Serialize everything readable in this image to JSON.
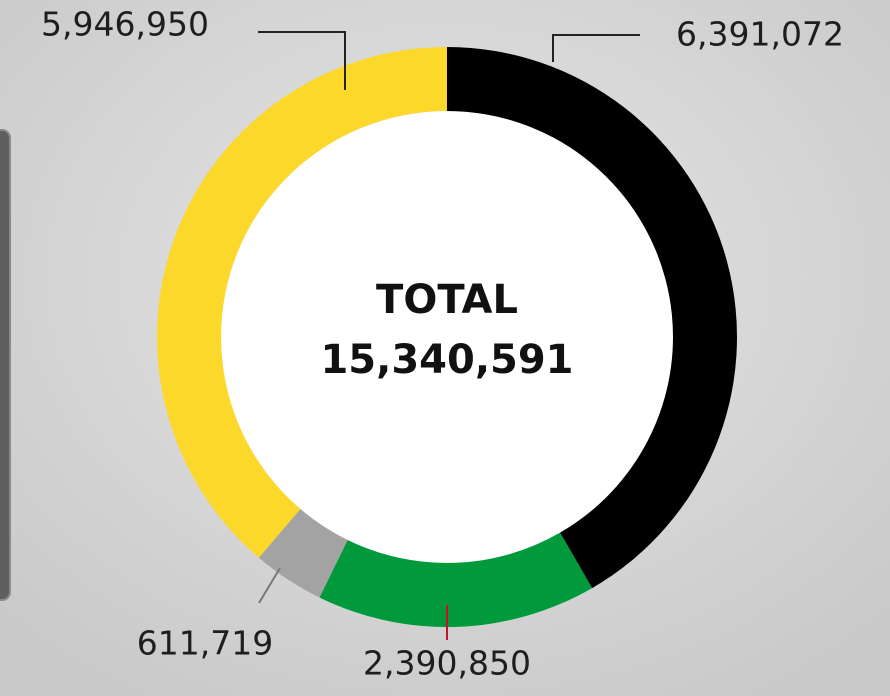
{
  "chart_data": {
    "type": "donut",
    "values": [
      6391072,
      2390850,
      611719,
      5946950
    ],
    "value_labels": [
      "6,391,072",
      "2,390,850",
      "611,719",
      "5,946,950"
    ],
    "colors": [
      "#000000",
      "#009a3d",
      "#a3a3a3",
      "#fcd82a"
    ],
    "center_title": "TOTAL",
    "total": 15340591,
    "total_label": "15,340,591"
  }
}
